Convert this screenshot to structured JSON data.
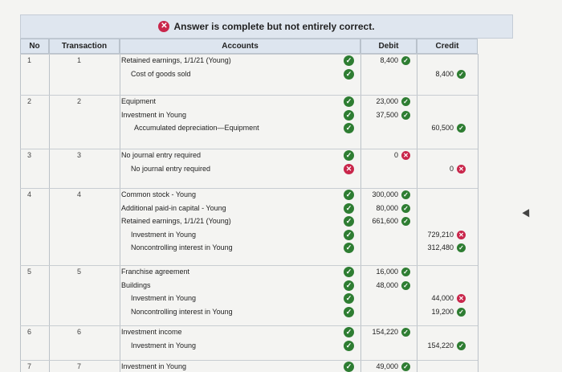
{
  "banner": "Answer is complete but not entirely correct.",
  "headers": {
    "no": "No",
    "transaction": "Transaction",
    "accounts": "Accounts",
    "debit": "Debit",
    "credit": "Credit"
  },
  "entries": [
    {
      "no": "1",
      "tr": "1",
      "lines": [
        {
          "account": "Retained earnings, 1/1/21 (Young)",
          "debit": "8,400",
          "credit": "",
          "status": "check",
          "dstatus": "check",
          "cstatus": ""
        },
        {
          "account": "Cost of goods sold",
          "debit": "",
          "credit": "8,400",
          "status": "check",
          "dstatus": "",
          "cstatus": "check"
        }
      ]
    },
    {
      "no": "2",
      "tr": "2",
      "lines": [
        {
          "account": "Equipment",
          "debit": "23,000",
          "credit": "",
          "status": "check",
          "dstatus": "check",
          "cstatus": ""
        },
        {
          "account": "Investment in Young",
          "debit": "37,500",
          "credit": "",
          "status": "check",
          "dstatus": "check",
          "cstatus": ""
        },
        {
          "account": "Accumulated depreciation—Equipment",
          "debit": "",
          "credit": "60,500",
          "status": "check",
          "dstatus": "",
          "cstatus": "check"
        }
      ]
    },
    {
      "no": "3",
      "tr": "3",
      "lines": [
        {
          "account": "No journal entry required",
          "debit": "0",
          "credit": "",
          "status": "check",
          "dstatus": "x",
          "cstatus": ""
        },
        {
          "account": "No journal entry required",
          "debit": "",
          "credit": "0",
          "status": "x",
          "dstatus": "",
          "cstatus": "x"
        }
      ]
    },
    {
      "no": "4",
      "tr": "4",
      "lines": [
        {
          "account": "Common stock - Young",
          "debit": "300,000",
          "credit": "",
          "status": "check",
          "dstatus": "check",
          "cstatus": ""
        },
        {
          "account": "Additional paid-in capital - Young",
          "debit": "80,000",
          "credit": "",
          "status": "check",
          "dstatus": "check",
          "cstatus": ""
        },
        {
          "account": "Retained earnings, 1/1/21 (Young)",
          "debit": "661,600",
          "credit": "",
          "status": "check",
          "dstatus": "check",
          "cstatus": ""
        },
        {
          "account": "Investment in Young",
          "debit": "",
          "credit": "729,210",
          "status": "check",
          "dstatus": "",
          "cstatus": "x"
        },
        {
          "account": "Noncontrolling interest in Young",
          "debit": "",
          "credit": "312,480",
          "status": "check",
          "dstatus": "",
          "cstatus": "check"
        }
      ]
    },
    {
      "no": "5",
      "tr": "5",
      "lines": [
        {
          "account": "Franchise agreement",
          "debit": "16,000",
          "credit": "",
          "status": "check",
          "dstatus": "check",
          "cstatus": ""
        },
        {
          "account": "Buildings",
          "debit": "48,000",
          "credit": "",
          "status": "check",
          "dstatus": "check",
          "cstatus": ""
        },
        {
          "account": "Investment in Young",
          "debit": "",
          "credit": "44,000",
          "status": "check",
          "dstatus": "",
          "cstatus": "x"
        },
        {
          "account": "Noncontrolling interest in Young",
          "debit": "",
          "credit": "19,200",
          "status": "check",
          "dstatus": "",
          "cstatus": "check"
        }
      ]
    },
    {
      "no": "6",
      "tr": "6",
      "lines": [
        {
          "account": "Investment income",
          "debit": "154,220",
          "credit": "",
          "status": "check",
          "dstatus": "check",
          "cstatus": ""
        },
        {
          "account": "Investment in Young",
          "debit": "",
          "credit": "154,220",
          "status": "check",
          "dstatus": "",
          "cstatus": "check"
        }
      ]
    },
    {
      "no": "7",
      "tr": "7",
      "lines": [
        {
          "account": "Investment in Young",
          "debit": "49,000",
          "credit": "",
          "status": "check",
          "dstatus": "check",
          "cstatus": ""
        }
      ]
    }
  ]
}
